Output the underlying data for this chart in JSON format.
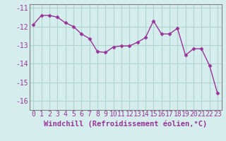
{
  "hours": [
    0,
    1,
    2,
    3,
    4,
    5,
    6,
    7,
    8,
    9,
    10,
    11,
    12,
    13,
    14,
    15,
    16,
    17,
    18,
    19,
    20,
    21,
    22,
    23
  ],
  "values": [
    -11.9,
    -11.4,
    -11.4,
    -11.5,
    -11.8,
    -12.0,
    -12.4,
    -12.65,
    -13.35,
    -13.4,
    -13.1,
    -13.05,
    -13.05,
    -12.85,
    -12.6,
    -11.7,
    -12.4,
    -12.4,
    -12.1,
    -13.55,
    -13.2,
    -13.2,
    -14.1,
    -15.6
  ],
  "line_color": "#993399",
  "marker": "D",
  "marker_size": 2.5,
  "bg_color": "#d5eeed",
  "grid_color": "#b0d5cc",
  "spine_color": "#808080",
  "xlabel": "Windchill (Refroidissement éolien,°C)",
  "ylim": [
    -16.5,
    -10.8
  ],
  "xlim": [
    -0.5,
    23.5
  ],
  "yticks": [
    -16,
    -15,
    -14,
    -13,
    -12,
    -11
  ],
  "ytick_labels": [
    "-16",
    "-15",
    "-14",
    "-13",
    "-12",
    "-11"
  ],
  "xticks": [
    0,
    1,
    2,
    3,
    4,
    5,
    6,
    7,
    8,
    9,
    10,
    11,
    12,
    13,
    14,
    15,
    16,
    17,
    18,
    19,
    20,
    21,
    22,
    23
  ],
  "xlabel_fontsize": 7.5,
  "tick_fontsize": 7,
  "line_width": 1.0
}
